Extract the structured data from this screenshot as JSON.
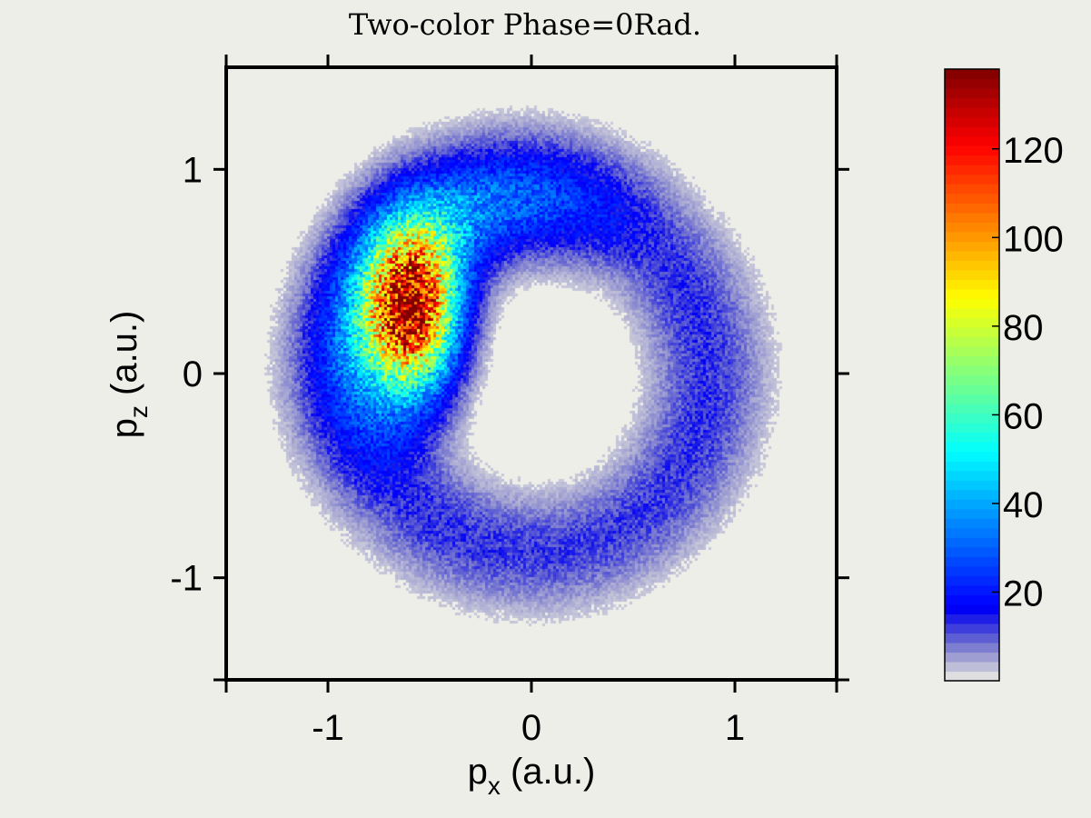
{
  "chart_data": {
    "type": "heatmap",
    "title": "Two-color Phase=0Rad.",
    "xlabel": {
      "main": "p",
      "sub": "x",
      "unit": " (a.u.)"
    },
    "ylabel": {
      "main": "p",
      "sub": "z",
      "unit": " (a.u.)"
    },
    "xlim": [
      -1.5,
      1.5
    ],
    "ylim": [
      -1.5,
      1.5
    ],
    "xticks": [
      -1,
      0,
      1
    ],
    "yticks": [
      -1,
      0,
      1
    ],
    "xtick_labels": [
      "-1",
      "0",
      "1"
    ],
    "ytick_labels": [
      "-1",
      "0",
      "1"
    ],
    "colormap": "jet",
    "colorbar": {
      "range": [
        0,
        138
      ],
      "ticks": [
        20,
        40,
        60,
        80,
        100,
        120
      ],
      "tick_labels": [
        "20",
        "40",
        "60",
        "80",
        "100",
        "120"
      ]
    },
    "distribution": {
      "shape": "ring",
      "ring_center": [
        0,
        0
      ],
      "ring_radius": 0.85,
      "ring_width": 0.28,
      "hotspot": {
        "x": -0.58,
        "y": 0.3,
        "peak": 138
      },
      "hole_center": [
        0.12,
        -0.12
      ],
      "background_level": 3
    }
  }
}
